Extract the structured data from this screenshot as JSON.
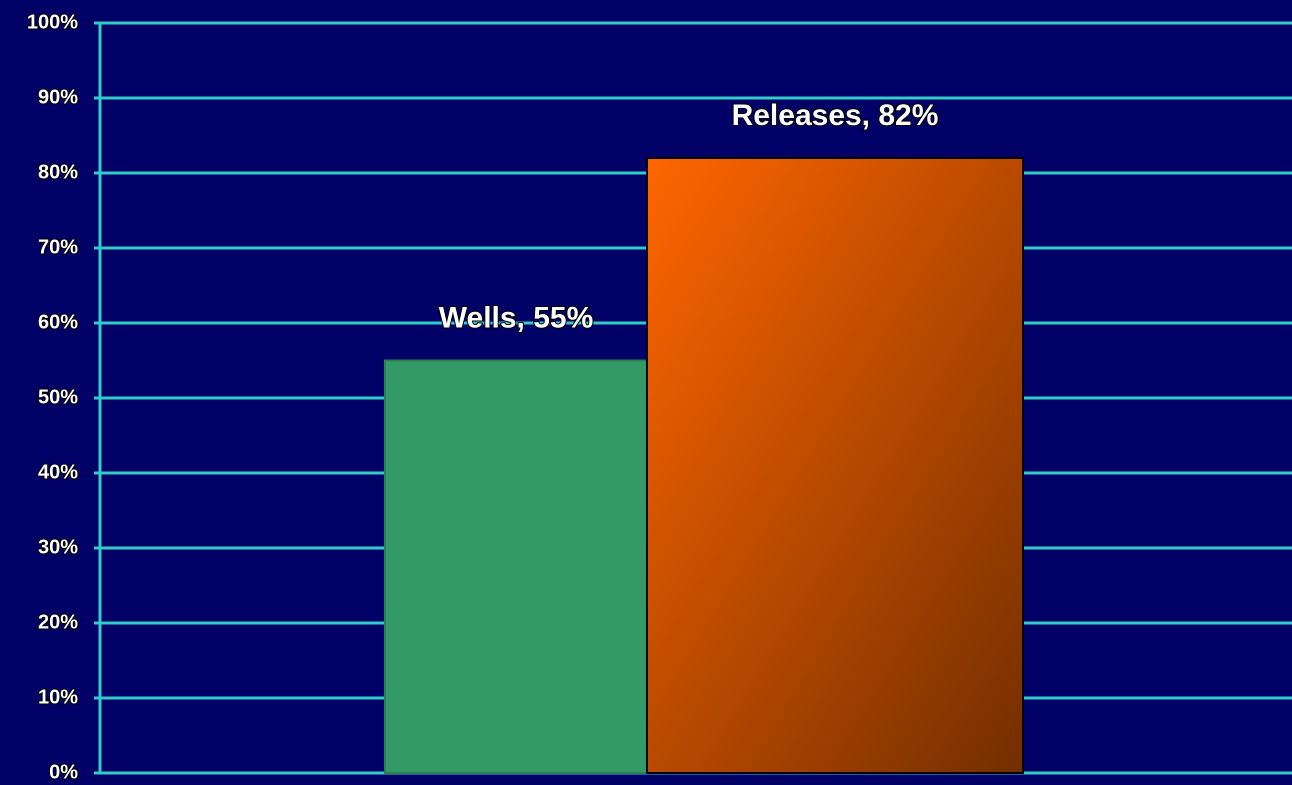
{
  "chart_data": {
    "type": "bar",
    "values": [
      55,
      82
    ],
    "value_labels": [
      "Wells, 55%",
      "Releases, 82%"
    ],
    "colors": [
      "#339966",
      "#ff6600"
    ],
    "ylim": [
      0,
      100
    ],
    "yticks": [
      {
        "value": 0,
        "label": "0%"
      },
      {
        "value": 10,
        "label": "10%"
      },
      {
        "value": 20,
        "label": "20%"
      },
      {
        "value": 30,
        "label": "30%"
      },
      {
        "value": 40,
        "label": "40%"
      },
      {
        "value": 50,
        "label": "50%"
      },
      {
        "value": 60,
        "label": "60%"
      },
      {
        "value": 70,
        "label": "70%"
      },
      {
        "value": 80,
        "label": "80%"
      },
      {
        "value": 90,
        "label": "90%"
      },
      {
        "value": 100,
        "label": "100%"
      }
    ],
    "grid": true
  }
}
